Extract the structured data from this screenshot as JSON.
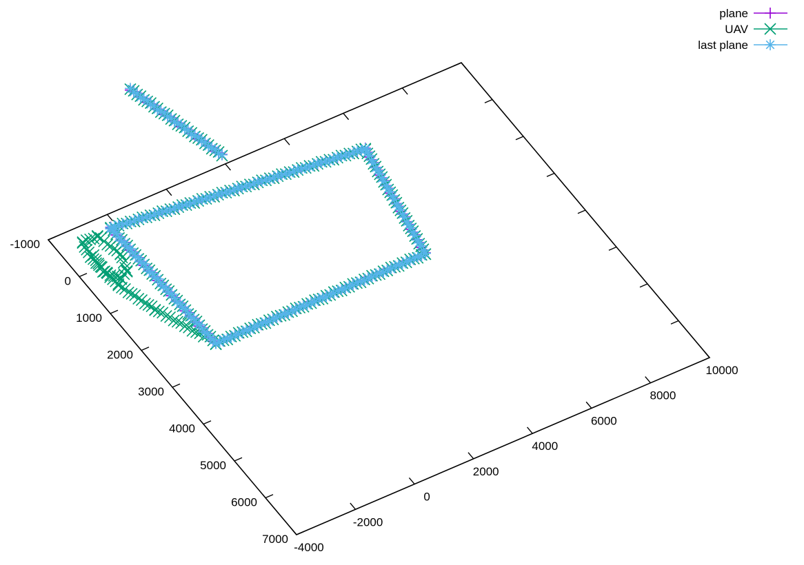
{
  "chart_data": {
    "type": "scatter",
    "projection": "3d-top-view",
    "xaxis": {
      "range": [
        -4000,
        10000
      ],
      "ticks": [
        "-4000",
        "-2000",
        "0",
        "2000",
        "4000",
        "6000",
        "8000",
        "10000"
      ]
    },
    "yaxis": {
      "range": [
        -1000,
        7000
      ],
      "ticks": [
        "-1000",
        "0",
        "1000",
        "2000",
        "3000",
        "4000",
        "5000",
        "6000",
        "7000"
      ]
    },
    "grid": false,
    "legend_position": "top-right",
    "series": [
      {
        "name": "plane",
        "marker": "plus",
        "color": "#9400d3",
        "paths": [
          [
            [
              -2200,
              -700
            ],
            [
              -2000,
              2500
            ],
            [
              5100,
              2500
            ],
            [
              5800,
              -100
            ],
            [
              -2200,
              -700
            ]
          ],
          [
            [
              2100,
              -1200
            ],
            [
              1200,
              -3300
            ]
          ]
        ]
      },
      {
        "name": "UAV",
        "marker": "cross",
        "color": "#009e73",
        "paths": [
          [
            [
              -2200,
              -700
            ],
            [
              -2000,
              2500
            ],
            [
              5100,
              2500
            ],
            [
              5800,
              -100
            ],
            [
              -2200,
              -700
            ]
          ],
          [
            [
              2100,
              -1200
            ],
            [
              1200,
              -3300
            ]
          ],
          [
            [
              -2150,
              2250
            ],
            [
              -2800,
              1300
            ],
            [
              -3200,
              500
            ],
            [
              -3300,
              -300
            ],
            [
              -3200,
              -650
            ],
            [
              -2700,
              -650
            ],
            [
              -2500,
              -100
            ],
            [
              -2700,
              300
            ],
            [
              -3000,
              400
            ],
            [
              -3300,
              100
            ],
            [
              -3200,
              -300
            ]
          ]
        ]
      },
      {
        "name": "last plane",
        "marker": "star",
        "color": "#56b4e9",
        "paths": [
          [
            [
              -2200,
              -700
            ],
            [
              -2000,
              2500
            ],
            [
              5100,
              2500
            ],
            [
              5800,
              -100
            ],
            [
              -2200,
              -700
            ]
          ],
          [
            [
              2100,
              -1200
            ],
            [
              1200,
              -3300
            ]
          ]
        ]
      }
    ]
  }
}
